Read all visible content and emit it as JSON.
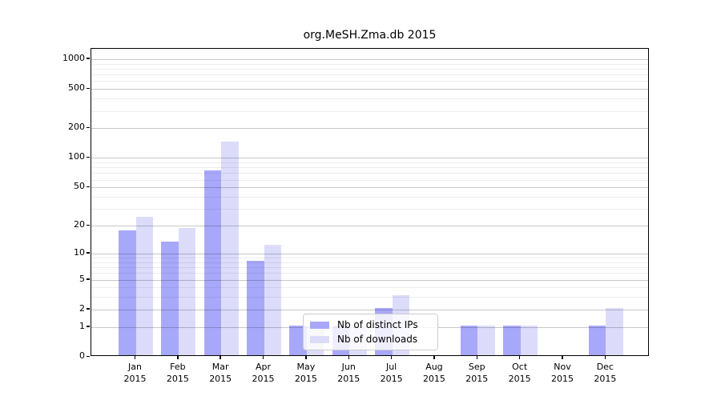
{
  "title": "org.MeSH.Zma.db 2015",
  "legend": {
    "items": [
      {
        "label": "Nb of distinct IPs",
        "color": "#a8a8fa"
      },
      {
        "label": "Nb of downloads",
        "color": "#dcdcfa"
      }
    ],
    "position": "inside-bottom-center"
  },
  "chart_data": {
    "type": "bar",
    "title": "org.MeSH.Zma.db 2015",
    "categories": [
      "Jan",
      "Feb",
      "Mar",
      "Apr",
      "May",
      "Jun",
      "Jul",
      "Aug",
      "Sep",
      "Oct",
      "Nov",
      "Dec"
    ],
    "category_year": "2015",
    "series": [
      {
        "name": "Nb of distinct IPs",
        "color": "#a8a8fa",
        "values": [
          17,
          13,
          72,
          8,
          1,
          1,
          2,
          0,
          1,
          1,
          0,
          1
        ]
      },
      {
        "name": "Nb of downloads",
        "color": "#dcdcfa",
        "values": [
          24,
          18,
          142,
          12,
          1,
          1,
          3,
          0,
          1,
          1,
          0,
          2
        ]
      }
    ],
    "xlabel": "",
    "ylabel": "",
    "y_scale": "log10(value+1)",
    "y_ticks": [
      0,
      1,
      2,
      5,
      10,
      20,
      50,
      100,
      200,
      500,
      1000
    ],
    "y_minor_ticks": [
      3,
      4,
      6,
      7,
      8,
      9,
      30,
      40,
      60,
      70,
      80,
      90,
      300,
      400,
      600,
      700,
      800,
      900
    ],
    "ylim_top_approx": 1280,
    "grid": "horizontal major and minor, drawn over bars",
    "colors": {
      "axis": "#000000",
      "grid_major": "#c7c7c7",
      "grid_minor": "#ebebeb"
    }
  }
}
